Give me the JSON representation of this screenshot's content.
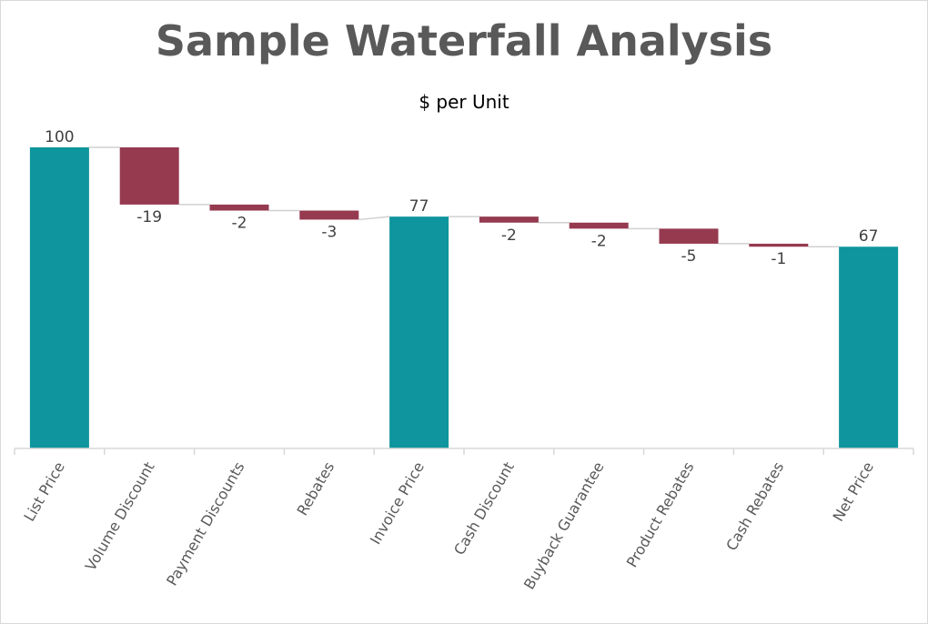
{
  "chart_data": {
    "type": "waterfall",
    "title": "Sample Waterfall Analysis",
    "subtitle": "$ per Unit",
    "categories": [
      "List Price",
      "Volume Discount",
      "Payment Discounts",
      "Rebates",
      "Invoice Price",
      "Cash Discount",
      "Buyback Guarantee",
      "Product Rebates",
      "Cash Rebates",
      "Net Price"
    ],
    "values": [
      100,
      -19,
      -2,
      -3,
      77,
      -2,
      -2,
      -5,
      -1,
      67
    ],
    "labels": [
      "100",
      "-19",
      "-2",
      "-3",
      "77",
      "-2",
      "-2",
      "-5",
      "-1",
      "67"
    ],
    "kinds": [
      "total",
      "delta",
      "delta",
      "delta",
      "total",
      "delta",
      "delta",
      "delta",
      "delta",
      "total"
    ],
    "ylim": [
      0,
      100
    ],
    "grid": false,
    "colors": {
      "total": "#0e959d",
      "decrease": "#953a4f",
      "connector": "#d0d0d0",
      "axis": "#d9d9d9"
    }
  }
}
